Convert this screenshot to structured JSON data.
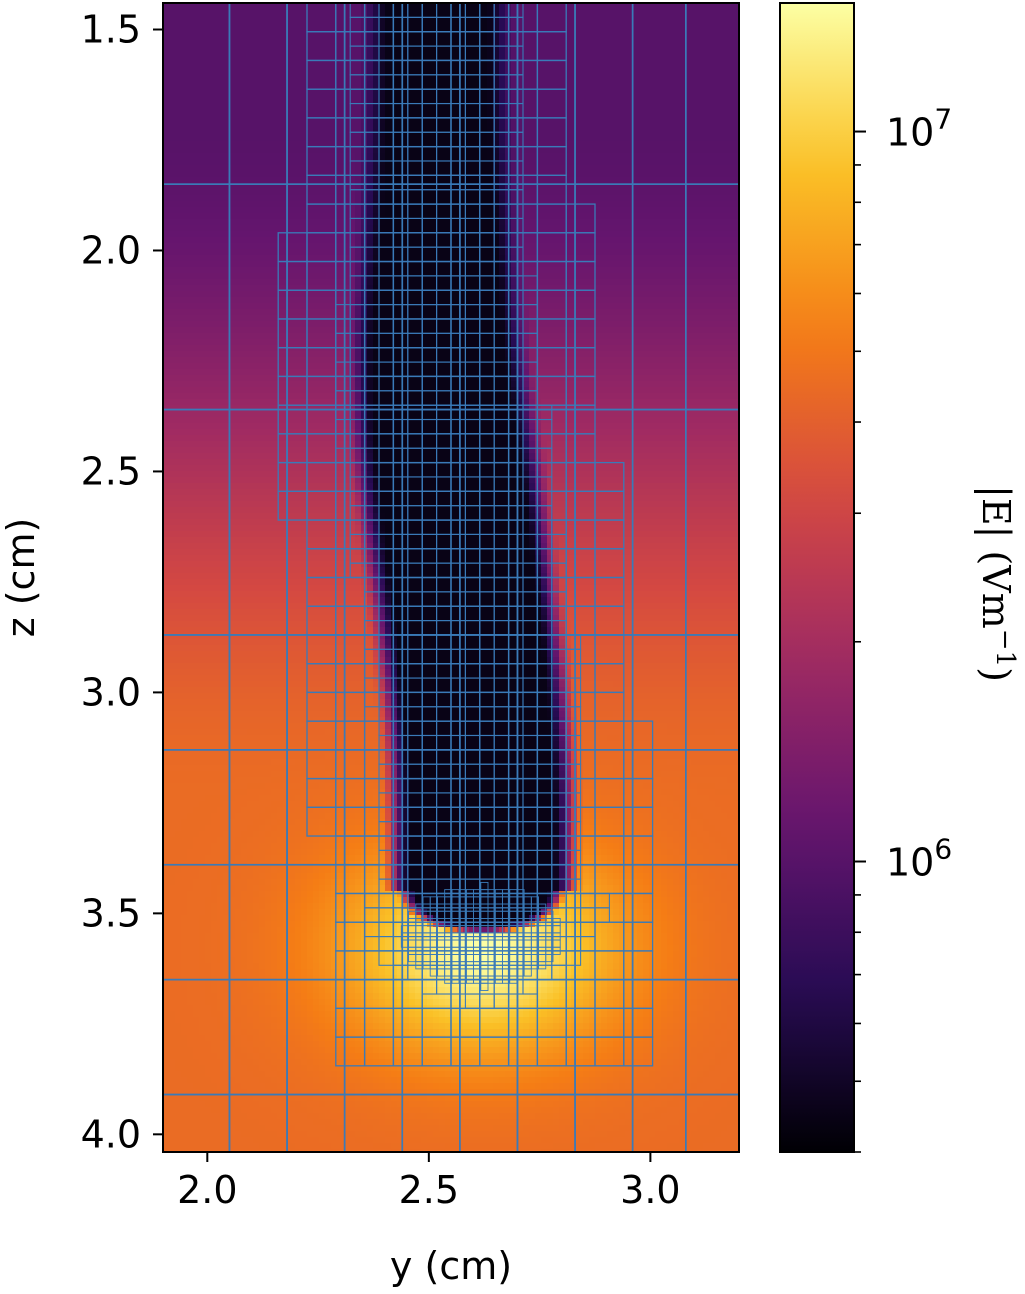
{
  "chart_data": {
    "type": "heatmap",
    "title": "",
    "xlabel": "y (cm)",
    "ylabel": "z (cm)",
    "xlim": [
      1.9,
      3.2
    ],
    "ylim": [
      4.04,
      1.44
    ],
    "y_axis_inverted": true,
    "xticks": [
      2.0,
      2.5,
      3.0
    ],
    "xtick_labels": [
      "2.0",
      "2.5",
      "3.0"
    ],
    "yticks": [
      1.5,
      2.0,
      2.5,
      3.0,
      3.5,
      4.0
    ],
    "ytick_labels": [
      "1.5",
      "2.0",
      "2.5",
      "3.0",
      "3.5",
      "4.0"
    ],
    "colormap": "inferno",
    "colorbar": {
      "label": "|E| (V m⁻¹)",
      "label_main": "|E| (Vm",
      "label_exp": "−1",
      "label_close": ")",
      "scale": "log",
      "range": [
        400000,
        15000000
      ],
      "major_ticks": [
        1000000,
        10000000
      ],
      "major_tick_bases": [
        "10",
        "10"
      ],
      "major_tick_exps": [
        "6",
        "7"
      ],
      "minor_ticks": [
        400000,
        500000,
        600000,
        700000,
        800000,
        900000,
        2000000,
        3000000,
        4000000,
        5000000,
        6000000,
        7000000,
        8000000,
        9000000
      ]
    },
    "field_description": {
      "channel_center_y": 2.52,
      "channel_head_z": 3.45,
      "channel_field": 450000,
      "head_peak_field": 15000000,
      "background_top_field": 1000000,
      "background_bottom_field": 4500000
    },
    "mesh_color": "#3a7ab8",
    "grid": false
  }
}
